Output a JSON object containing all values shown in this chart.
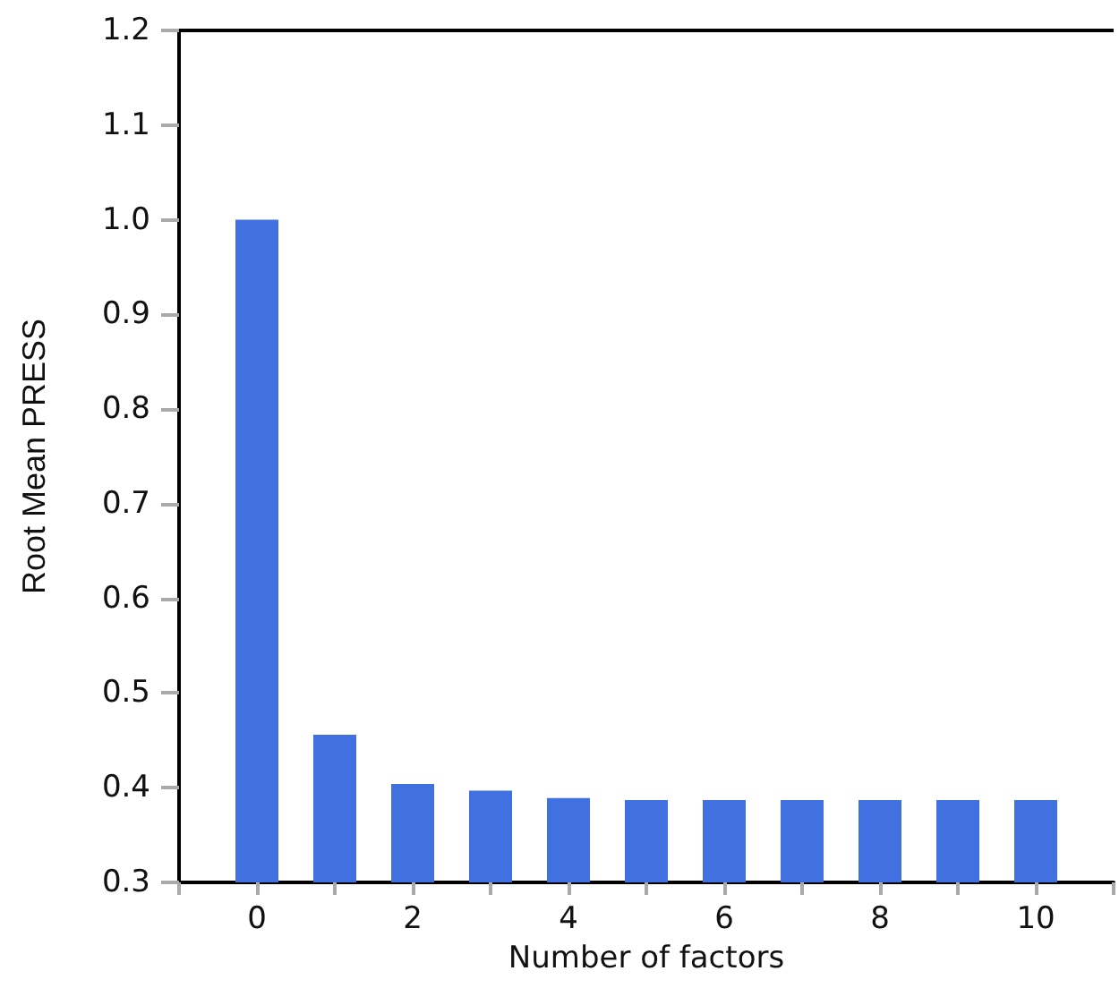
{
  "chart_data": {
    "type": "bar",
    "xlabel": "Number of factors",
    "ylabel": "Root Mean PRESS",
    "x": [
      0,
      1,
      2,
      3,
      4,
      5,
      6,
      7,
      8,
      9,
      10
    ],
    "values": [
      1.0,
      0.456,
      0.404,
      0.397,
      0.389,
      0.387,
      0.387,
      0.387,
      0.387,
      0.387,
      0.387
    ],
    "color": "#4170e0",
    "xlim": [
      -1,
      11
    ],
    "xticks": [
      {
        "value": -1,
        "label": null
      },
      0,
      {
        "value": 1,
        "label": null
      },
      2,
      {
        "value": 3,
        "label": null
      },
      4,
      {
        "value": 5,
        "label": null
      },
      6,
      {
        "value": 7,
        "label": null
      },
      8,
      {
        "value": 9,
        "label": null
      },
      10,
      {
        "value": 11,
        "label": null
      }
    ],
    "ylim": [
      0.3,
      1.2
    ],
    "yticks": [
      0.3,
      0.4,
      0.5,
      0.6,
      0.7,
      0.8,
      0.9,
      {
        "value": 1,
        "label": "1.0"
      },
      1.1,
      1.2
    ],
    "grid": false
  }
}
